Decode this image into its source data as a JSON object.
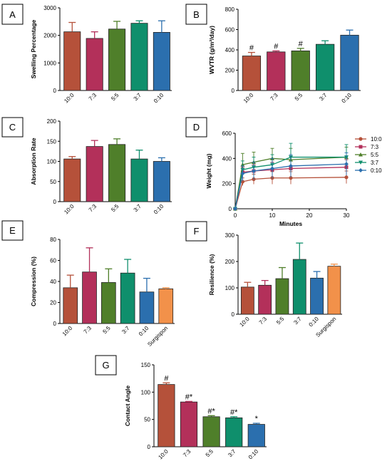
{
  "colors": {
    "10:0": "#b5513a",
    "7:3": "#b3305a",
    "5:5": "#4f7f2a",
    "3:7": "#0f8f6c",
    "0:10": "#2b6fae",
    "Surgispon": "#f2914a"
  },
  "chart_data": [
    {
      "panel": "A",
      "type": "bar",
      "categories": [
        "10:0",
        "7:3",
        "5:5",
        "3:7",
        "0:10"
      ],
      "values": [
        2130,
        1890,
        2230,
        2440,
        2110
      ],
      "errors": [
        340,
        240,
        280,
        90,
        420
      ],
      "ylabel": "Swelling  Percentage",
      "ylim": [
        0,
        3000
      ],
      "yticks": [
        "0",
        "1000",
        "2000",
        "3000"
      ],
      "ytick_values": [
        0,
        1000,
        2000,
        3000
      ],
      "annotations": []
    },
    {
      "panel": "B",
      "type": "bar",
      "categories": [
        "10:0",
        "7:3",
        "5:5",
        "3:7",
        "0:10"
      ],
      "values": [
        340,
        380,
        390,
        455,
        545
      ],
      "errors": [
        35,
        10,
        25,
        35,
        50
      ],
      "ylabel": "WVTR (g/m²/day)",
      "ylim": [
        0,
        800
      ],
      "yticks": [
        "0",
        "200",
        "400",
        "600",
        "800"
      ],
      "ytick_values": [
        0,
        200,
        400,
        600,
        800
      ],
      "annotations": [
        "#",
        "#",
        "#",
        "",
        ""
      ]
    },
    {
      "panel": "C",
      "type": "bar",
      "categories": [
        "10:0",
        "7:3",
        "5:5",
        "3:7",
        "0:10"
      ],
      "values": [
        106,
        137,
        142,
        106,
        100
      ],
      "errors": [
        6,
        15,
        14,
        22,
        9
      ],
      "ylabel": "Absorption Rate",
      "ylim": [
        0,
        200
      ],
      "yticks": [
        "0",
        "50",
        "100",
        "150",
        "200"
      ],
      "ytick_values": [
        0,
        50,
        100,
        150,
        200
      ],
      "annotations": []
    },
    {
      "panel": "D",
      "type": "line",
      "x": [
        0,
        2,
        5,
        10,
        15,
        30
      ],
      "series": [
        {
          "name": "10:0",
          "values": [
            0,
            215,
            235,
            245,
            245,
            250
          ],
          "errors": [
            0,
            30,
            40,
            50,
            50,
            50
          ]
        },
        {
          "name": "7:3",
          "values": [
            0,
            290,
            300,
            310,
            320,
            330
          ],
          "errors": [
            0,
            40,
            50,
            60,
            60,
            60
          ]
        },
        {
          "name": "5:5",
          "values": [
            0,
            350,
            370,
            400,
            390,
            410
          ],
          "errors": [
            0,
            90,
            80,
            80,
            90,
            80
          ]
        },
        {
          "name": "3:7",
          "values": [
            0,
            310,
            330,
            350,
            410,
            410
          ],
          "errors": [
            0,
            70,
            80,
            80,
            110,
            100
          ]
        },
        {
          "name": "0:10",
          "values": [
            0,
            280,
            300,
            320,
            340,
            355
          ],
          "errors": [
            0,
            60,
            70,
            80,
            90,
            90
          ]
        }
      ],
      "xlabel": "Minutes",
      "ylabel": "Weight (mg)",
      "xlim": [
        0,
        30
      ],
      "xticks": [
        "0",
        "10",
        "20",
        "30"
      ],
      "xtick_values": [
        0,
        10,
        20,
        30
      ],
      "ylim": [
        0,
        600
      ],
      "yticks": [
        "0",
        "200",
        "400",
        "600"
      ],
      "ytick_values": [
        0,
        200,
        400,
        600
      ],
      "legend": "right"
    },
    {
      "panel": "E",
      "type": "bar",
      "categories": [
        "10:0",
        "7:3",
        "5:5",
        "3:7",
        "0:10",
        "Surgispon"
      ],
      "values": [
        34,
        49,
        39,
        48,
        30,
        33
      ],
      "errors": [
        12,
        23,
        13,
        13,
        13,
        1
      ],
      "ylabel": "Compression (%)",
      "ylim": [
        0,
        80
      ],
      "yticks": [
        "0",
        "20",
        "40",
        "60",
        "80"
      ],
      "ytick_values": [
        0,
        20,
        40,
        60,
        80
      ],
      "annotations": []
    },
    {
      "panel": "F",
      "type": "bar",
      "categories": [
        "10:0",
        "7:3",
        "5:5",
        "3:7",
        "0:10",
        "Surgispon"
      ],
      "values": [
        103,
        110,
        135,
        208,
        137,
        182
      ],
      "errors": [
        18,
        18,
        42,
        62,
        25,
        8
      ],
      "ylabel": "Resilience (%)",
      "ylim": [
        0,
        300
      ],
      "yticks": [
        "0",
        "100",
        "200",
        "300"
      ],
      "ytick_values": [
        0,
        100,
        200,
        300
      ],
      "annotations": []
    },
    {
      "panel": "G",
      "type": "bar",
      "categories": [
        "10:0",
        "7:3",
        "5:5",
        "3:7",
        "0:10"
      ],
      "values": [
        114,
        82,
        55,
        53,
        41
      ],
      "errors": [
        3,
        1,
        2,
        2,
        2
      ],
      "ylabel": "Contact Angle",
      "ylim": [
        0,
        150
      ],
      "yticks": [
        "0",
        "50",
        "100",
        "150"
      ],
      "ytick_values": [
        0,
        50,
        100,
        150
      ],
      "annotations": [
        "#",
        "#*",
        "#*",
        "#*",
        "*"
      ]
    }
  ]
}
